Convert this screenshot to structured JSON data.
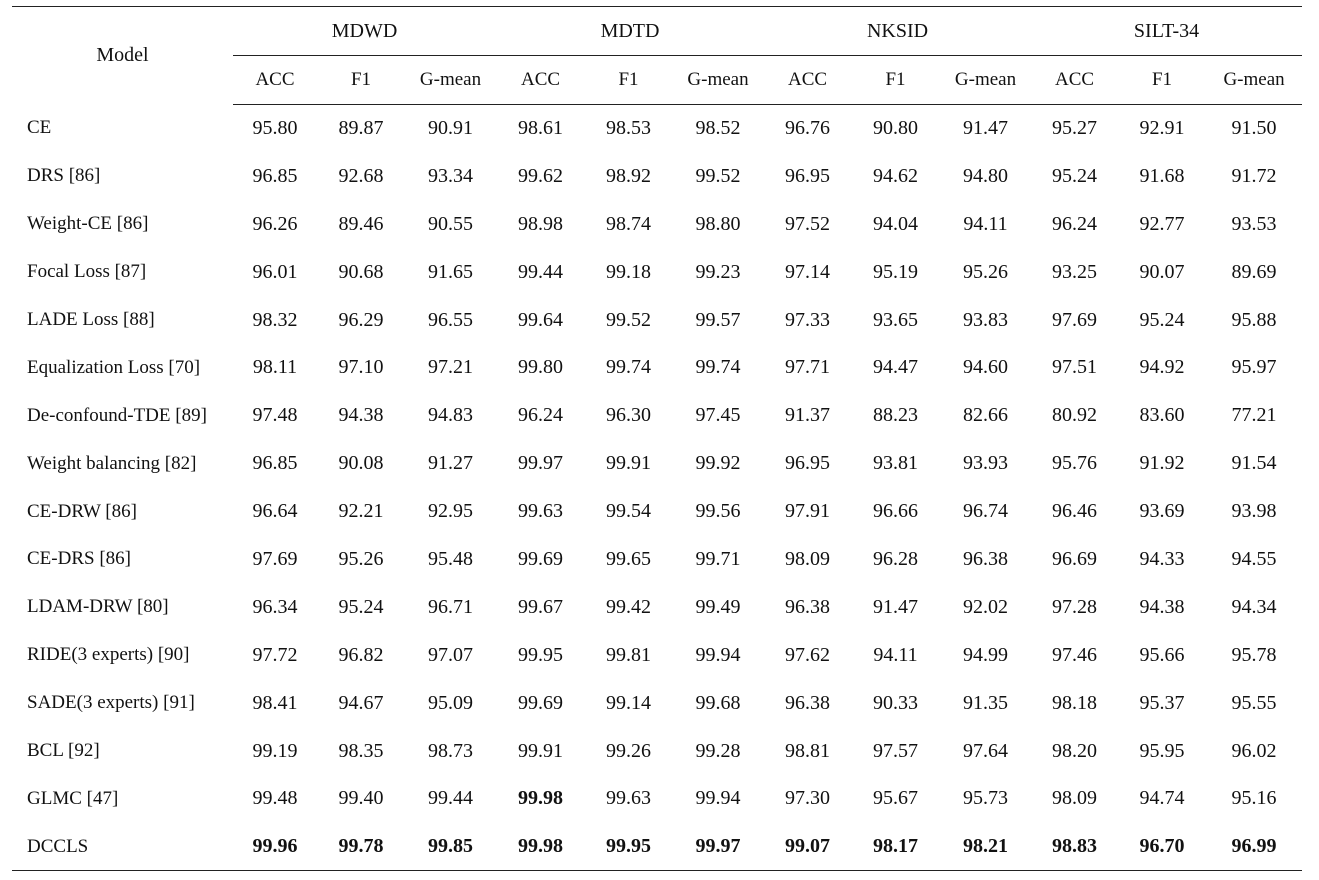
{
  "table": {
    "header": {
      "model": "Model",
      "groups": [
        {
          "name": "MDWD",
          "metrics": [
            "ACC",
            "F1",
            "G-mean"
          ]
        },
        {
          "name": "MDTD",
          "metrics": [
            "ACC",
            "F1",
            "G-mean"
          ]
        },
        {
          "name": "NKSID",
          "metrics": [
            "ACC",
            "F1",
            "G-mean"
          ]
        },
        {
          "name": "SILT-34",
          "metrics": [
            "ACC",
            "F1",
            "G-mean"
          ]
        }
      ]
    },
    "rows": [
      [
        "CE",
        "95.80",
        "89.87",
        "90.91",
        "98.61",
        "98.53",
        "98.52",
        "96.76",
        "90.80",
        "91.47",
        "95.27",
        "92.91",
        "91.50"
      ],
      [
        "DRS [86]",
        "96.85",
        "92.68",
        "93.34",
        "99.62",
        "98.92",
        "99.52",
        "96.95",
        "94.62",
        "94.80",
        "95.24",
        "91.68",
        "91.72"
      ],
      [
        "Weight-CE [86]",
        "96.26",
        "89.46",
        "90.55",
        "98.98",
        "98.74",
        "98.80",
        "97.52",
        "94.04",
        "94.11",
        "96.24",
        "92.77",
        "93.53"
      ],
      [
        "Focal Loss [87]",
        "96.01",
        "90.68",
        "91.65",
        "99.44",
        "99.18",
        "99.23",
        "97.14",
        "95.19",
        "95.26",
        "93.25",
        "90.07",
        "89.69"
      ],
      [
        "LADE Loss [88]",
        "98.32",
        "96.29",
        "96.55",
        "99.64",
        "99.52",
        "99.57",
        "97.33",
        "93.65",
        "93.83",
        "97.69",
        "95.24",
        "95.88"
      ],
      [
        "Equalization Loss [70]",
        "98.11",
        "97.10",
        "97.21",
        "99.80",
        "99.74",
        "99.74",
        "97.71",
        "94.47",
        "94.60",
        "97.51",
        "94.92",
        "95.97"
      ],
      [
        "De-confound-TDE [89]",
        "97.48",
        "94.38",
        "94.83",
        "96.24",
        "96.30",
        "97.45",
        "91.37",
        "88.23",
        "82.66",
        "80.92",
        "83.60",
        "77.21"
      ],
      [
        "Weight balancing [82]",
        "96.85",
        "90.08",
        "91.27",
        "99.97",
        "99.91",
        "99.92",
        "96.95",
        "93.81",
        "93.93",
        "95.76",
        "91.92",
        "91.54"
      ],
      [
        "CE-DRW [86]",
        "96.64",
        "92.21",
        "92.95",
        "99.63",
        "99.54",
        "99.56",
        "97.91",
        "96.66",
        "96.74",
        "96.46",
        "93.69",
        "93.98"
      ],
      [
        "CE-DRS [86]",
        "97.69",
        "95.26",
        "95.48",
        "99.69",
        "99.65",
        "99.71",
        "98.09",
        "96.28",
        "96.38",
        "96.69",
        "94.33",
        "94.55"
      ],
      [
        "LDAM-DRW [80]",
        "96.34",
        "95.24",
        "96.71",
        "99.67",
        "99.42",
        "99.49",
        "96.38",
        "91.47",
        "92.02",
        "97.28",
        "94.38",
        "94.34"
      ],
      [
        "RIDE(3 experts) [90]",
        "97.72",
        "96.82",
        "97.07",
        "99.95",
        "99.81",
        "99.94",
        "97.62",
        "94.11",
        "94.99",
        "97.46",
        "95.66",
        "95.78"
      ],
      [
        "SADE(3 experts) [91]",
        "98.41",
        "94.67",
        "95.09",
        "99.69",
        "99.14",
        "99.68",
        "96.38",
        "90.33",
        "91.35",
        "98.18",
        "95.37",
        "95.55"
      ],
      [
        "BCL [92]",
        "99.19",
        "98.35",
        "98.73",
        "99.91",
        "99.26",
        "99.28",
        "98.81",
        "97.57",
        "97.64",
        "98.20",
        "95.95",
        "96.02"
      ],
      [
        "GLMC [47]",
        "99.48",
        "99.40",
        "99.44",
        "99.98",
        "99.63",
        "99.94",
        "97.30",
        "95.67",
        "95.73",
        "98.09",
        "94.74",
        "95.16"
      ],
      [
        "DCCLS",
        "99.96",
        "99.78",
        "99.85",
        "99.98",
        "99.95",
        "99.97",
        "99.07",
        "98.17",
        "98.21",
        "98.83",
        "96.70",
        "96.99"
      ]
    ]
  }
}
